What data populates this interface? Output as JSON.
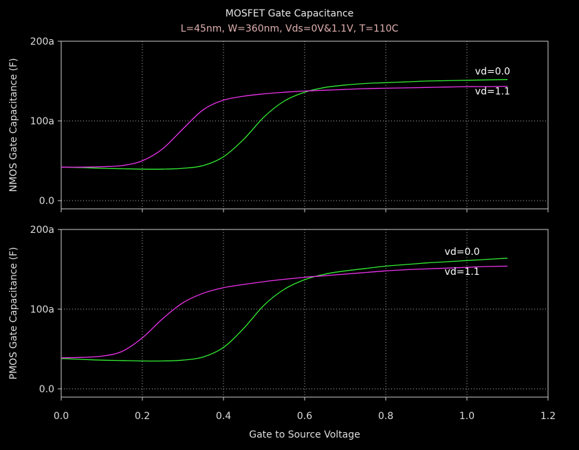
{
  "title": "MOSFET Gate Capacitance",
  "subtitle": "L=45nm, W=360nm, Vds=0V&1.1V, T=110C",
  "colors": {
    "background": "#000000",
    "frame": "#cfcfcf",
    "grid": "#bbbbbb",
    "text": "#dddddd",
    "subtitle": "#e0b0b0",
    "vd0": "#33ee33",
    "vd1": "#ee33ee"
  },
  "chart_data": [
    {
      "type": "line",
      "ylabel": "NMOS Gate Capacitance (F)",
      "xlabel": "",
      "xlim": [
        0,
        1.2
      ],
      "ylim": [
        0,
        200
      ],
      "xticks": [
        0.0,
        0.2,
        0.4,
        0.6,
        0.8,
        1.0,
        1.2
      ],
      "yticks": [
        0,
        100,
        200
      ],
      "ytick_labels": [
        "0.0",
        "100a",
        "200a"
      ],
      "grid": true,
      "series": [
        {
          "name": "vd=0.0",
          "color": "#33ee33",
          "x": [
            0,
            0.05,
            0.1,
            0.15,
            0.2,
            0.25,
            0.3,
            0.35,
            0.4,
            0.45,
            0.5,
            0.55,
            0.6,
            0.65,
            0.7,
            0.75,
            0.8,
            0.85,
            0.9,
            0.95,
            1.0,
            1.05,
            1.1
          ],
          "values": [
            42,
            41.5,
            40.5,
            40,
            39.5,
            39.5,
            40.5,
            44,
            55,
            77,
            105,
            125,
            136,
            142,
            145,
            147,
            148,
            149,
            150,
            150.5,
            151,
            151.5,
            152
          ]
        },
        {
          "name": "vd=1.1",
          "color": "#ee33ee",
          "x": [
            0,
            0.05,
            0.1,
            0.15,
            0.2,
            0.25,
            0.3,
            0.35,
            0.4,
            0.45,
            0.5,
            0.55,
            0.6,
            0.65,
            0.7,
            0.75,
            0.8,
            0.85,
            0.9,
            0.95,
            1.0,
            1.05,
            1.1
          ],
          "values": [
            42,
            42,
            42.5,
            44,
            50,
            65,
            90,
            114,
            126,
            131,
            134,
            136,
            137.5,
            138.5,
            139.5,
            140.5,
            141,
            141.5,
            142,
            142.5,
            143,
            143,
            143.5
          ]
        }
      ],
      "annotations": [
        {
          "text": "vd=0.0",
          "x": 1.02,
          "y": 158
        },
        {
          "text": "vd=1.1",
          "x": 1.02,
          "y": 133
        }
      ]
    },
    {
      "type": "line",
      "ylabel": "PMOS Gate Capacitance (F)",
      "xlabel": "Gate to Source Voltage",
      "xlim": [
        0,
        1.2
      ],
      "ylim": [
        0,
        200
      ],
      "xticks": [
        0.0,
        0.2,
        0.4,
        0.6,
        0.8,
        1.0,
        1.2
      ],
      "xtick_labels": [
        "0.0",
        "0.2",
        "0.4",
        "0.6",
        "0.8",
        "1.0",
        "1.2"
      ],
      "yticks": [
        0,
        100,
        200
      ],
      "ytick_labels": [
        "0.0",
        "100a",
        "200a"
      ],
      "grid": true,
      "series": [
        {
          "name": "vd=0.0",
          "color": "#33ee33",
          "x": [
            0,
            0.05,
            0.1,
            0.15,
            0.2,
            0.25,
            0.3,
            0.35,
            0.4,
            0.45,
            0.5,
            0.55,
            0.6,
            0.65,
            0.7,
            0.75,
            0.8,
            0.85,
            0.9,
            0.95,
            1.0,
            1.05,
            1.1
          ],
          "values": [
            38,
            37,
            36,
            35.5,
            35,
            35,
            36,
            40,
            52,
            76,
            105,
            125,
            137,
            144,
            148,
            151,
            154,
            156,
            158,
            159.5,
            161,
            162.5,
            164
          ]
        },
        {
          "name": "vd=1.1",
          "color": "#ee33ee",
          "x": [
            0,
            0.05,
            0.1,
            0.15,
            0.2,
            0.25,
            0.3,
            0.35,
            0.4,
            0.45,
            0.5,
            0.55,
            0.6,
            0.65,
            0.7,
            0.75,
            0.8,
            0.85,
            0.9,
            0.95,
            1.0,
            1.05,
            1.1
          ],
          "values": [
            39,
            39.5,
            41,
            47,
            64,
            88,
            108,
            120,
            127,
            131,
            134.5,
            137.5,
            140,
            142,
            144,
            146,
            148,
            149.5,
            150.5,
            151.5,
            152.5,
            153.5,
            154
          ]
        }
      ],
      "annotations": [
        {
          "text": "vd=0.0",
          "x": 0.945,
          "y": 168
        },
        {
          "text": "vd=1.1",
          "x": 0.945,
          "y": 143
        }
      ]
    }
  ]
}
